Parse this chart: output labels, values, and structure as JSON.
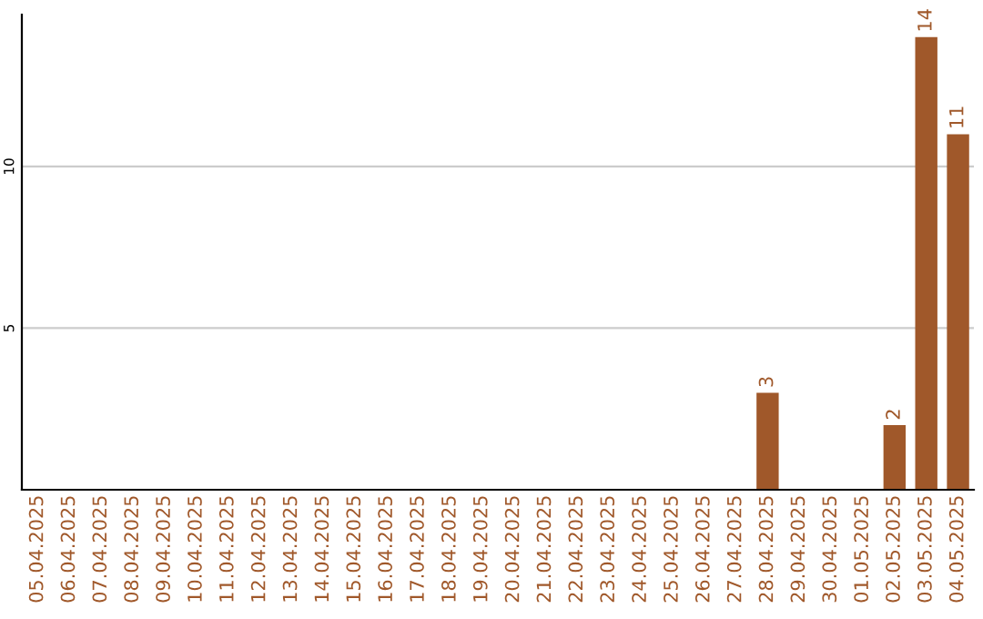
{
  "chart_data": {
    "type": "bar",
    "categories": [
      "05.04.2025",
      "06.04.2025",
      "07.04.2025",
      "08.04.2025",
      "09.04.2025",
      "10.04.2025",
      "11.04.2025",
      "12.04.2025",
      "13.04.2025",
      "14.04.2025",
      "15.04.2025",
      "16.04.2025",
      "17.04.2025",
      "18.04.2025",
      "19.04.2025",
      "20.04.2025",
      "21.04.2025",
      "22.04.2025",
      "23.04.2025",
      "24.04.2025",
      "25.04.2025",
      "26.04.2025",
      "27.04.2025",
      "28.04.2025",
      "29.04.2025",
      "30.04.2025",
      "01.05.2025",
      "02.05.2025",
      "03.05.2025",
      "04.05.2025"
    ],
    "values": [
      0,
      0,
      0,
      0,
      0,
      0,
      0,
      0,
      0,
      0,
      0,
      0,
      0,
      0,
      0,
      0,
      0,
      0,
      0,
      0,
      0,
      0,
      0,
      3,
      0,
      0,
      0,
      2,
      14,
      11
    ],
    "value_labels": [
      null,
      null,
      null,
      null,
      null,
      null,
      null,
      null,
      null,
      null,
      null,
      null,
      null,
      null,
      null,
      null,
      null,
      null,
      null,
      null,
      null,
      null,
      null,
      "3",
      null,
      null,
      null,
      "2",
      "14",
      "11"
    ],
    "color": "#a0582a",
    "ylim": [
      0,
      14.7
    ],
    "yticks": [
      5,
      10
    ],
    "grid": "y"
  }
}
